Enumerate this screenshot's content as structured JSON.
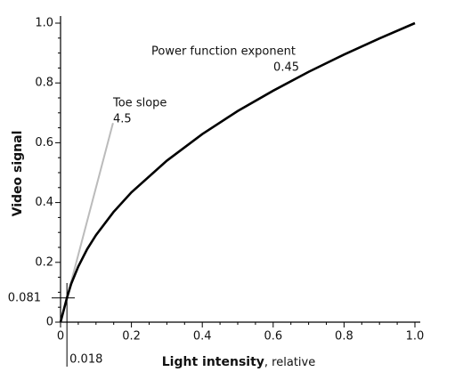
{
  "chart_data": {
    "type": "line",
    "y_label": "Video signal",
    "x_label": "Light intensity",
    "x_label_suffix": ", relative",
    "xlim": [
      0,
      1
    ],
    "ylim": [
      0,
      1
    ],
    "xticks": [
      0,
      0.2,
      0.4,
      0.6,
      0.8,
      {
        "value": 1,
        "label": "1.0"
      }
    ],
    "yticks": [
      0,
      0.2,
      0.4,
      0.6,
      0.8,
      {
        "value": 1,
        "label": "1.0"
      }
    ],
    "xminorticks": [
      0.05,
      0.1,
      0.15,
      0.25,
      0.3,
      0.35,
      0.45,
      0.5,
      0.55,
      0.65,
      0.7,
      0.75,
      0.85,
      0.9,
      0.95
    ],
    "yminorticks": [
      0.05,
      0.1,
      0.15,
      0.25,
      0.3,
      0.35,
      0.45,
      0.5,
      0.55,
      0.65,
      0.7,
      0.75,
      0.85,
      0.9,
      0.95
    ],
    "series": [
      {
        "color": "#bbbbbb",
        "x": [
          0,
          0.148
        ],
        "values": [
          0,
          0.666
        ]
      },
      {
        "color": "#000000",
        "x": [
          0,
          0.018,
          0.03,
          0.05,
          0.075,
          0.1,
          0.15,
          0.2,
          0.3,
          0.4,
          0.5,
          0.6,
          0.7,
          0.8,
          0.9,
          1
        ],
        "values": [
          0,
          0.081,
          0.128,
          0.186,
          0.244,
          0.291,
          0.369,
          0.434,
          0.54,
          0.629,
          0.706,
          0.774,
          0.837,
          0.895,
          0.949,
          1
        ]
      }
    ],
    "x_marker": 0.018,
    "y_marker": 0.081,
    "annotations": [
      {
        "text": "Power function exponent"
      },
      {
        "text": "0.45"
      },
      {
        "text": "Toe slope"
      },
      {
        "text": "4.5"
      }
    ]
  }
}
